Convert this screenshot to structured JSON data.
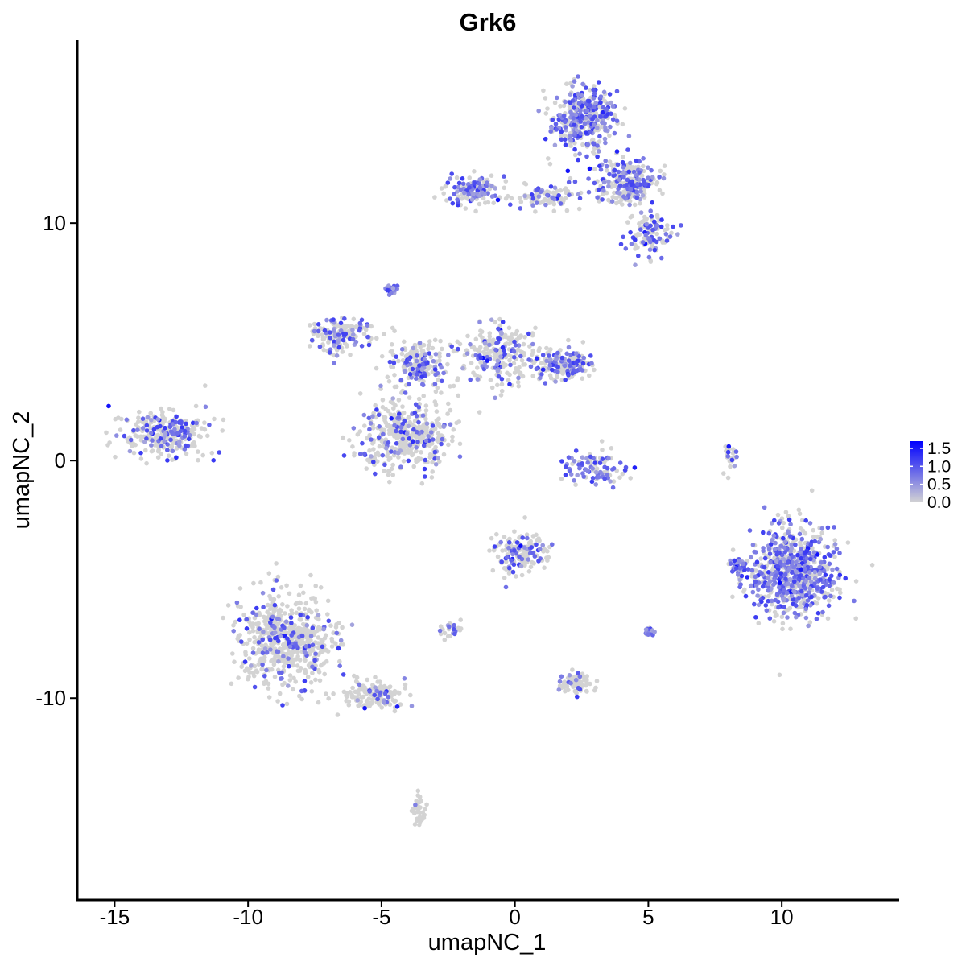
{
  "chart_data": {
    "type": "scatter",
    "title": "Grk6",
    "xlabel": "umapNC_1",
    "ylabel": "umapNC_2",
    "xlim": [
      -16.4,
      14.4
    ],
    "ylim": [
      -18.5,
      17.7
    ],
    "x_ticks": [
      -15,
      -10,
      -5,
      0,
      5,
      10
    ],
    "x_tick_labels": [
      "-15",
      "-10",
      "-5",
      "0",
      "5",
      "10"
    ],
    "y_ticks": [
      -10,
      0,
      10
    ],
    "y_tick_labels": [
      "-10",
      "0",
      "10"
    ],
    "grid": false,
    "legend": {
      "placement": "right",
      "type": "colorbar",
      "min": 0.0,
      "max": 1.7,
      "ticks": [
        0.0,
        0.5,
        1.0,
        1.5
      ],
      "tick_labels": [
        "0.0",
        "0.5",
        "1.0",
        "1.5"
      ]
    },
    "color_low": "#d3d3d3",
    "color_high": "#0000ff",
    "expression_range": [
      0.0,
      1.7
    ],
    "clusters": [
      {
        "center": [
          2.6,
          14.4
        ],
        "spread": [
          1.0,
          1.1
        ],
        "n": 380,
        "expr_frac": 0.55
      },
      {
        "center": [
          4.3,
          11.7
        ],
        "spread": [
          0.9,
          0.8
        ],
        "n": 240,
        "expr_frac": 0.5
      },
      {
        "center": [
          -1.6,
          11.4
        ],
        "spread": [
          0.8,
          0.5
        ],
        "n": 140,
        "expr_frac": 0.45
      },
      {
        "center": [
          1.2,
          11.1
        ],
        "spread": [
          1.2,
          0.4
        ],
        "n": 90,
        "expr_frac": 0.35
      },
      {
        "center": [
          5.0,
          9.5
        ],
        "spread": [
          0.7,
          0.7
        ],
        "n": 110,
        "expr_frac": 0.4
      },
      {
        "center": [
          -6.6,
          5.3
        ],
        "spread": [
          0.9,
          0.6
        ],
        "n": 170,
        "expr_frac": 0.3
      },
      {
        "center": [
          -3.6,
          4.1
        ],
        "spread": [
          1.0,
          0.9
        ],
        "n": 190,
        "expr_frac": 0.3
      },
      {
        "center": [
          -0.6,
          4.6
        ],
        "spread": [
          1.2,
          1.1
        ],
        "n": 230,
        "expr_frac": 0.3
      },
      {
        "center": [
          1.8,
          4.0
        ],
        "spread": [
          0.9,
          0.5
        ],
        "n": 180,
        "expr_frac": 0.45
      },
      {
        "center": [
          -4.1,
          1.1
        ],
        "spread": [
          1.4,
          1.3
        ],
        "n": 420,
        "expr_frac": 0.22
      },
      {
        "center": [
          -13.1,
          1.1
        ],
        "spread": [
          1.3,
          0.8
        ],
        "n": 300,
        "expr_frac": 0.3
      },
      {
        "center": [
          -4.6,
          7.2
        ],
        "spread": [
          0.2,
          0.2
        ],
        "n": 25,
        "expr_frac": 0.9
      },
      {
        "center": [
          3.0,
          -0.3
        ],
        "spread": [
          1.0,
          0.7
        ],
        "n": 90,
        "expr_frac": 0.55
      },
      {
        "center": [
          10.4,
          -4.7
        ],
        "spread": [
          1.4,
          1.5
        ],
        "n": 700,
        "expr_frac": 0.55
      },
      {
        "center": [
          8.4,
          -4.5
        ],
        "spread": [
          0.3,
          0.4
        ],
        "n": 40,
        "expr_frac": 0.7
      },
      {
        "center": [
          0.2,
          -3.9
        ],
        "spread": [
          0.8,
          0.7
        ],
        "n": 160,
        "expr_frac": 0.3
      },
      {
        "center": [
          -8.6,
          -7.5
        ],
        "spread": [
          1.4,
          1.6
        ],
        "n": 620,
        "expr_frac": 0.2
      },
      {
        "center": [
          -5.3,
          -9.9
        ],
        "spread": [
          1.0,
          0.5
        ],
        "n": 150,
        "expr_frac": 0.12
      },
      {
        "center": [
          2.3,
          -9.4
        ],
        "spread": [
          0.5,
          0.4
        ],
        "n": 80,
        "expr_frac": 0.15
      },
      {
        "center": [
          -2.4,
          -7.1
        ],
        "spread": [
          0.3,
          0.3
        ],
        "n": 30,
        "expr_frac": 0.3
      },
      {
        "center": [
          -3.6,
          -14.7
        ],
        "spread": [
          0.2,
          0.6
        ],
        "n": 35,
        "expr_frac": 0.1
      },
      {
        "center": [
          8.1,
          0.2
        ],
        "spread": [
          0.2,
          0.6
        ],
        "n": 25,
        "expr_frac": 0.2
      },
      {
        "center": [
          5.0,
          -7.2
        ],
        "spread": [
          0.2,
          0.2
        ],
        "n": 18,
        "expr_frac": 0.7
      }
    ]
  }
}
